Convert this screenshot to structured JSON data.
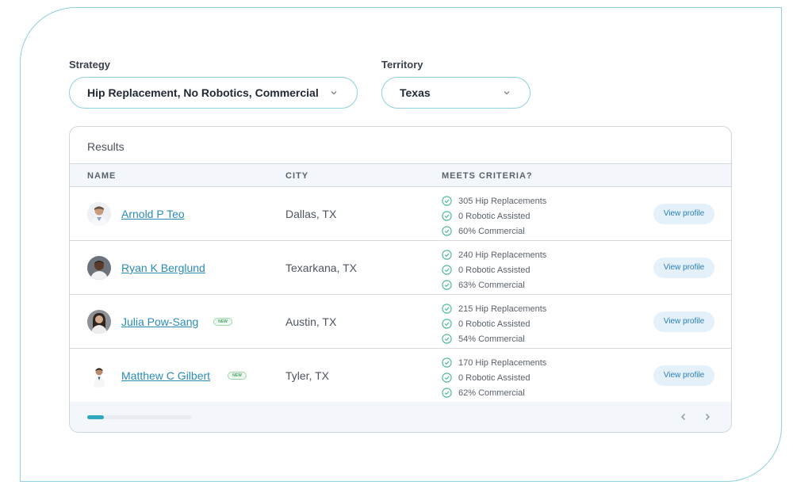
{
  "filters": {
    "strategy": {
      "label": "Strategy",
      "value": "Hip Replacement, No Robotics, Commercial"
    },
    "territory": {
      "label": "Territory",
      "value": "Texas"
    }
  },
  "results": {
    "title": "Results",
    "columns": [
      "NAME",
      "CITY",
      "MEETS CRITERIA?"
    ],
    "rows": [
      {
        "name": "Arnold P Teo",
        "city": "Dallas, TX",
        "badge": "",
        "criteria": [
          "305 Hip Replacements",
          "0 Robotic Assisted",
          "60% Commercial"
        ],
        "action": "View profile"
      },
      {
        "name": "Ryan K Berglund",
        "city": "Texarkana, TX",
        "badge": "",
        "criteria": [
          "240 Hip Replacements",
          "0 Robotic Assisted",
          "63% Commercial"
        ],
        "action": "View profile"
      },
      {
        "name": "Julia Pow-Sang",
        "city": "Austin, TX",
        "badge": "NEW",
        "criteria": [
          "215 Hip Replacements",
          "0 Robotic Assisted",
          "54% Commercial"
        ],
        "action": "View profile"
      },
      {
        "name": "Matthew C Gilbert",
        "city": "Tyler, TX",
        "badge": "NEW",
        "criteria": [
          "170 Hip Replacements",
          "0 Robotic Assisted",
          "62% Commercial"
        ],
        "action": "View profile"
      }
    ],
    "scroll_progress": 0.16
  },
  "icons": {
    "dropdown": "chevron-down-icon",
    "criteria": "check-circle-icon",
    "prev": "chevron-left-icon",
    "next": "chevron-right-icon"
  },
  "colors": {
    "accent": "#8fd0dc",
    "link": "#2a8bb5",
    "check": "#45b597",
    "scroll_thumb": "#2fa8c3"
  }
}
